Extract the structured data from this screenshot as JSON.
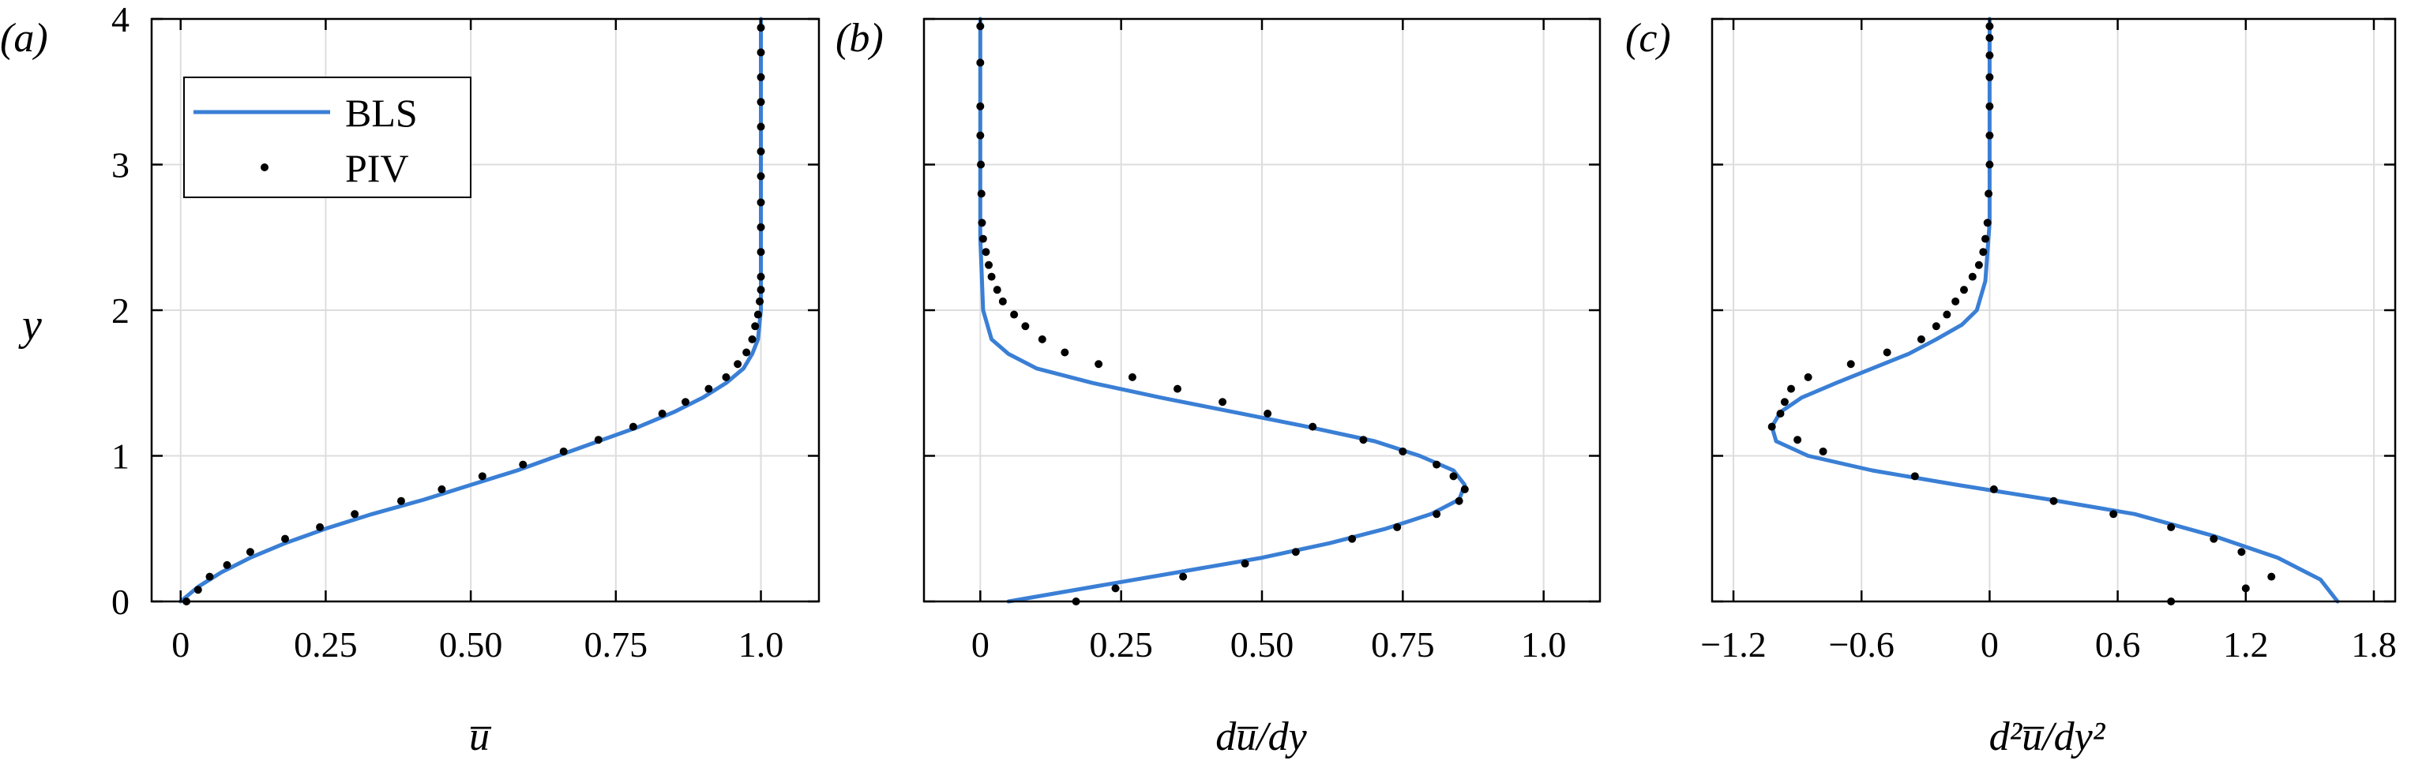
{
  "colors": {
    "bls_line": "#3a7fd5",
    "piv_marker": "#000000",
    "grid": "#dddddd",
    "axes": "#000000"
  },
  "legend": {
    "line_label": "BLS",
    "marker_label": "PIV",
    "placement": "upper-left of panel (a)"
  },
  "y_axis_label": "y",
  "chart_data": [
    {
      "type": "line",
      "panel_label": "(a)",
      "xlabel": "u̅",
      "ylabel": "y",
      "xlim": [
        -0.05,
        1.1
      ],
      "ylim": [
        0,
        4
      ],
      "xticks": [
        0,
        0.25,
        0.5,
        0.75,
        1.0
      ],
      "xtick_labels": [
        "0",
        "0.25",
        "0.50",
        "0.75",
        "1.0"
      ],
      "yticks": [
        0,
        1,
        2,
        3,
        4
      ],
      "ytick_labels": [
        "0",
        "1",
        "2",
        "3",
        "4"
      ],
      "grid": true,
      "series": [
        {
          "name": "BLS",
          "style": "line",
          "x": [
            0.0,
            0.03,
            0.07,
            0.12,
            0.18,
            0.25,
            0.33,
            0.42,
            0.5,
            0.58,
            0.65,
            0.72,
            0.79,
            0.85,
            0.9,
            0.94,
            0.97,
            0.985,
            0.995,
            1.0,
            1.0,
            1.0
          ],
          "y": [
            0.0,
            0.1,
            0.2,
            0.3,
            0.4,
            0.5,
            0.6,
            0.7,
            0.8,
            0.9,
            1.0,
            1.1,
            1.2,
            1.3,
            1.4,
            1.5,
            1.6,
            1.7,
            1.8,
            2.0,
            3.0,
            4.0
          ]
        },
        {
          "name": "PIV",
          "style": "markers",
          "x": [
            0.01,
            0.03,
            0.05,
            0.08,
            0.12,
            0.18,
            0.24,
            0.3,
            0.38,
            0.45,
            0.52,
            0.59,
            0.66,
            0.72,
            0.78,
            0.83,
            0.87,
            0.91,
            0.94,
            0.96,
            0.975,
            0.985,
            0.99,
            0.995,
            0.998,
            1.0,
            1.0,
            1.0,
            1.0,
            1.0,
            1.0,
            1.0,
            1.0,
            1.0,
            1.0,
            1.0,
            1.0
          ],
          "y": [
            0.0,
            0.08,
            0.17,
            0.25,
            0.34,
            0.43,
            0.51,
            0.6,
            0.69,
            0.77,
            0.86,
            0.94,
            1.03,
            1.11,
            1.2,
            1.29,
            1.37,
            1.46,
            1.54,
            1.63,
            1.71,
            1.8,
            1.89,
            1.97,
            2.06,
            2.14,
            2.23,
            2.4,
            2.57,
            2.74,
            2.92,
            3.09,
            3.26,
            3.43,
            3.6,
            3.77,
            3.94
          ]
        }
      ]
    },
    {
      "type": "line",
      "panel_label": "(b)",
      "xlabel": "du̅/dy",
      "xlim": [
        -0.1,
        1.1
      ],
      "ylim": [
        0,
        4
      ],
      "xticks": [
        0,
        0.25,
        0.5,
        0.75,
        1.0
      ],
      "xtick_labels": [
        "0",
        "0.25",
        "0.50",
        "0.75",
        "1.0"
      ],
      "yticks": [
        0,
        1,
        2,
        3,
        4
      ],
      "grid": true,
      "series": [
        {
          "name": "BLS",
          "style": "line",
          "x": [
            0.05,
            0.2,
            0.35,
            0.5,
            0.62,
            0.72,
            0.8,
            0.85,
            0.86,
            0.84,
            0.78,
            0.7,
            0.58,
            0.45,
            0.32,
            0.2,
            0.1,
            0.05,
            0.02,
            0.005,
            0.0,
            0.0
          ],
          "y": [
            0.0,
            0.1,
            0.2,
            0.3,
            0.4,
            0.5,
            0.6,
            0.7,
            0.8,
            0.9,
            1.0,
            1.1,
            1.2,
            1.3,
            1.4,
            1.5,
            1.6,
            1.7,
            1.8,
            2.0,
            2.5,
            4.0
          ]
        },
        {
          "name": "PIV",
          "style": "markers",
          "x": [
            0.17,
            0.24,
            0.36,
            0.47,
            0.56,
            0.66,
            0.74,
            0.81,
            0.85,
            0.86,
            0.84,
            0.81,
            0.75,
            0.68,
            0.59,
            0.51,
            0.43,
            0.35,
            0.27,
            0.21,
            0.15,
            0.11,
            0.08,
            0.06,
            0.04,
            0.03,
            0.02,
            0.015,
            0.01,
            0.005,
            0.003,
            0.002,
            0.001,
            0.0,
            0.0,
            0.0,
            0.0
          ],
          "y": [
            0.0,
            0.09,
            0.17,
            0.26,
            0.34,
            0.43,
            0.51,
            0.6,
            0.69,
            0.77,
            0.86,
            0.94,
            1.03,
            1.11,
            1.2,
            1.29,
            1.37,
            1.46,
            1.54,
            1.63,
            1.71,
            1.8,
            1.89,
            1.97,
            2.06,
            2.14,
            2.23,
            2.31,
            2.4,
            2.49,
            2.6,
            2.8,
            3.0,
            3.2,
            3.4,
            3.7,
            3.95
          ]
        }
      ]
    },
    {
      "type": "line",
      "panel_label": "(c)",
      "xlabel": "d²u̅/dy²",
      "xlim": [
        -1.3,
        1.9
      ],
      "ylim": [
        0,
        4
      ],
      "xticks": [
        -1.2,
        -0.6,
        0,
        0.6,
        1.2,
        1.8
      ],
      "xtick_labels": [
        "−1.2",
        "−0.6",
        "0",
        "0.6",
        "1.2",
        "1.8"
      ],
      "yticks": [
        0,
        1,
        2,
        3,
        4
      ],
      "grid": true,
      "series": [
        {
          "name": "BLS",
          "style": "line",
          "x": [
            1.63,
            1.55,
            1.35,
            1.05,
            0.68,
            0.28,
            -0.15,
            -0.55,
            -0.85,
            -1.0,
            -1.02,
            -0.98,
            -0.88,
            -0.72,
            -0.55,
            -0.38,
            -0.25,
            -0.13,
            -0.06,
            -0.02,
            0.0,
            0.0
          ],
          "y": [
            0.0,
            0.15,
            0.3,
            0.45,
            0.6,
            0.7,
            0.8,
            0.9,
            1.0,
            1.1,
            1.2,
            1.3,
            1.4,
            1.5,
            1.6,
            1.7,
            1.8,
            1.9,
            2.0,
            2.2,
            2.6,
            4.0
          ]
        },
        {
          "name": "PIV",
          "style": "markers",
          "x": [
            0.85,
            1.2,
            1.32,
            1.18,
            1.05,
            0.85,
            0.58,
            0.3,
            0.02,
            -0.35,
            -0.78,
            -0.9,
            -1.02,
            -0.98,
            -0.96,
            -0.93,
            -0.85,
            -0.65,
            -0.48,
            -0.32,
            -0.25,
            -0.2,
            -0.16,
            -0.12,
            -0.08,
            -0.05,
            -0.03,
            -0.02,
            -0.01,
            -0.005,
            0.0,
            0.0,
            0.0,
            0.0,
            0.0,
            0.0,
            0.0
          ],
          "y": [
            0.0,
            0.09,
            0.17,
            0.34,
            0.43,
            0.51,
            0.6,
            0.69,
            0.77,
            0.86,
            1.03,
            1.11,
            1.2,
            1.29,
            1.37,
            1.46,
            1.54,
            1.63,
            1.71,
            1.8,
            1.89,
            1.97,
            2.06,
            2.14,
            2.23,
            2.31,
            2.4,
            2.49,
            2.6,
            2.8,
            3.0,
            3.2,
            3.4,
            3.6,
            3.75,
            3.87,
            3.95
          ]
        }
      ]
    }
  ]
}
